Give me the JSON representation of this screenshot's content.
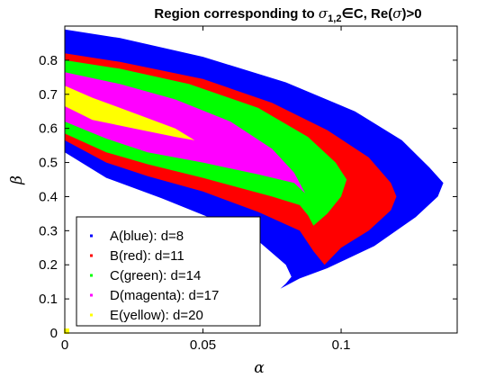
{
  "chart_data": {
    "type": "area",
    "title_main": "Region corresponding to ",
    "title_sym": "σ",
    "title_sub": "1,2",
    "title_rest": "∈C, Re(",
    "title_sym2": "σ",
    "title_end": ")>0",
    "xlabel": "α",
    "ylabel": "β",
    "xlim": [
      0,
      0.142
    ],
    "ylim": [
      0,
      0.9
    ],
    "xticks": [
      {
        "v": 0,
        "label": "0"
      },
      {
        "v": 0.05,
        "label": "0.05"
      },
      {
        "v": 0.1,
        "label": "0.1"
      }
    ],
    "yticks": [
      {
        "v": 0,
        "label": "0"
      },
      {
        "v": 0.1,
        "label": "0.1"
      },
      {
        "v": 0.2,
        "label": "0.2"
      },
      {
        "v": 0.3,
        "label": "0.3"
      },
      {
        "v": 0.4,
        "label": "0.4"
      },
      {
        "v": 0.5,
        "label": "0.5"
      },
      {
        "v": 0.6,
        "label": "0.6"
      },
      {
        "v": 0.7,
        "label": "0.7"
      },
      {
        "v": 0.8,
        "label": "0.8"
      }
    ],
    "grid": false,
    "legend_position": "bottom-left",
    "series": [
      {
        "name": "A(blue): d=8",
        "color": "#0000ff",
        "points": [
          [
            0,
            0.89
          ],
          [
            0.02,
            0.865
          ],
          [
            0.05,
            0.81
          ],
          [
            0.08,
            0.735
          ],
          [
            0.105,
            0.65
          ],
          [
            0.122,
            0.565
          ],
          [
            0.132,
            0.485
          ],
          [
            0.137,
            0.44
          ],
          [
            0.135,
            0.4
          ],
          [
            0.127,
            0.34
          ],
          [
            0.112,
            0.255
          ],
          [
            0.095,
            0.19
          ],
          [
            0.085,
            0.16
          ],
          [
            0.078,
            0.13
          ],
          [
            0.08,
            0.145
          ],
          [
            0.082,
            0.165
          ],
          [
            0.08,
            0.2
          ],
          [
            0.07,
            0.27
          ],
          [
            0.055,
            0.33
          ],
          [
            0.035,
            0.395
          ],
          [
            0.015,
            0.455
          ],
          [
            0,
            0.53
          ]
        ]
      },
      {
        "name": "B(red): d=11",
        "color": "#ff0000",
        "points": [
          [
            0,
            0.82
          ],
          [
            0.02,
            0.795
          ],
          [
            0.05,
            0.745
          ],
          [
            0.075,
            0.675
          ],
          [
            0.095,
            0.595
          ],
          [
            0.11,
            0.515
          ],
          [
            0.118,
            0.44
          ],
          [
            0.12,
            0.4
          ],
          [
            0.118,
            0.36
          ],
          [
            0.11,
            0.3
          ],
          [
            0.1,
            0.25
          ],
          [
            0.094,
            0.2
          ],
          [
            0.09,
            0.24
          ],
          [
            0.085,
            0.3
          ],
          [
            0.07,
            0.355
          ],
          [
            0.05,
            0.415
          ],
          [
            0.03,
            0.46
          ],
          [
            0.015,
            0.5
          ],
          [
            0,
            0.565
          ]
        ]
      },
      {
        "name": "C(green): d=14",
        "color": "#00ff00",
        "points": [
          [
            0,
            0.8
          ],
          [
            0.02,
            0.775
          ],
          [
            0.045,
            0.73
          ],
          [
            0.07,
            0.66
          ],
          [
            0.088,
            0.575
          ],
          [
            0.098,
            0.5
          ],
          [
            0.102,
            0.45
          ],
          [
            0.1,
            0.4
          ],
          [
            0.095,
            0.35
          ],
          [
            0.09,
            0.315
          ],
          [
            0.088,
            0.345
          ],
          [
            0.085,
            0.375
          ],
          [
            0.075,
            0.4
          ],
          [
            0.05,
            0.455
          ],
          [
            0.03,
            0.495
          ],
          [
            0.015,
            0.53
          ],
          [
            0,
            0.585
          ]
        ]
      },
      {
        "name": "D(magenta): d=17",
        "color": "#ff00ff",
        "points": [
          [
            0,
            0.765
          ],
          [
            0.02,
            0.73
          ],
          [
            0.04,
            0.685
          ],
          [
            0.06,
            0.62
          ],
          [
            0.075,
            0.54
          ],
          [
            0.083,
            0.47
          ],
          [
            0.087,
            0.41
          ],
          [
            0.083,
            0.44
          ],
          [
            0.07,
            0.465
          ],
          [
            0.05,
            0.5
          ],
          [
            0.03,
            0.53
          ],
          [
            0.015,
            0.57
          ],
          [
            0,
            0.62
          ]
        ]
      },
      {
        "name": "E(yellow): d=20",
        "color": "#ffff00",
        "points": [
          [
            0,
            0.725
          ],
          [
            0.01,
            0.69
          ],
          [
            0.025,
            0.645
          ],
          [
            0.04,
            0.6
          ],
          [
            0.047,
            0.565
          ],
          [
            0.04,
            0.575
          ],
          [
            0.025,
            0.6
          ],
          [
            0.01,
            0.625
          ],
          [
            0,
            0.665
          ]
        ]
      }
    ],
    "extra_points": [
      {
        "x": 0,
        "y": 0,
        "color": "#ffff00"
      }
    ]
  }
}
